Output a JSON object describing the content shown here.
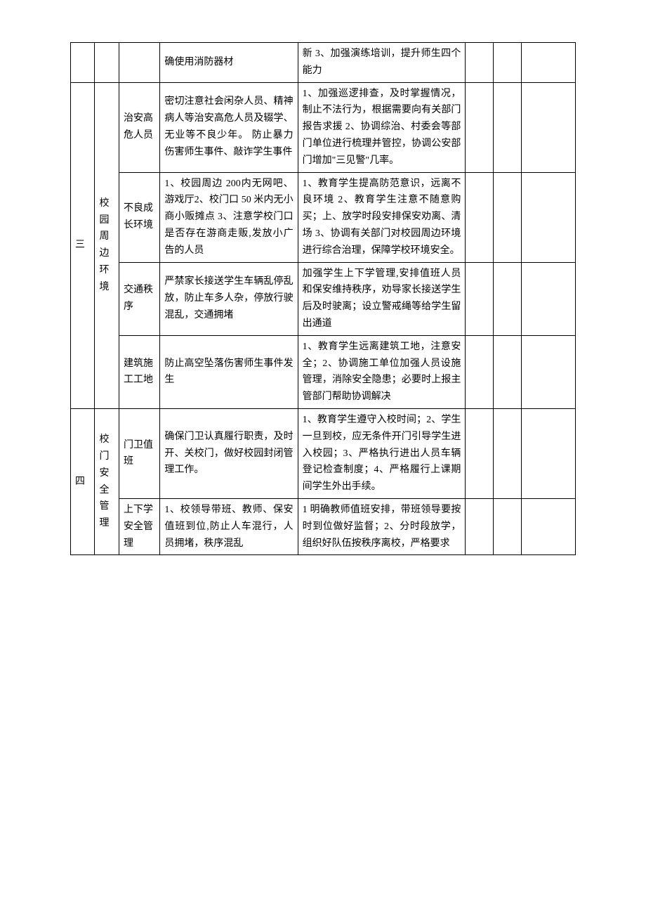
{
  "watermark": "",
  "rows": [
    {
      "idx": "",
      "cat": "",
      "sub": "",
      "desc_cont": "确使用消防器材",
      "measure_cont": "新\n3、加强演练培训，提升师生四个能力"
    }
  ],
  "section3": {
    "idx": "三",
    "cat": "校园周边环境",
    "subs": [
      {
        "sub": "治安高危人员",
        "desc": "密切注意社会闲杂人员、精神病人等治安高危人员及辍学、无业等不良少年。\n防止暴力伤害师生事件、敲诈学生事件",
        "measure": "1、加强巡逻排查，及时掌握情况，制止不法行为，根据需要向有关部门报告求援 2、协调综治、村委会等部门单位进行梳理并管控，协调公安部门增加\"三见警\"几率。"
      },
      {
        "sub": "不良成长环境",
        "desc": "1、校园周边 200内无网吧、游戏厅2、校门口 50 米内无小商小贩摊点 3、注意学校门口是否存在游商走贩,发放小广告的人员",
        "measure": "1、教育学生提高防范意识，远离不良环境 2、教育学生注意不随意购买；上、放学时段安排保安劝离、清场\n3、协调有关部门对校园周边环境进行综合治理，保障学校环境安全。"
      },
      {
        "sub": "交通秩序",
        "desc": "严禁家长接送学生车辆乱停乱放，防止车多人杂，停放行驶混乱，交通拥堵",
        "measure": "加强学生上下学管理,安排值班人员和保安维持秩序，劝导家长接送学生后及时驶离；设立警戒绳等给学生留出通道"
      },
      {
        "sub": "建筑施工工地",
        "desc": "防止高空坠落伤害师生事件发生",
        "measure": "1、教育学生远离建筑工地，注意安全；2、协调施工单位加强人员设施管理，消除安全隐患；必要时上报主管部门帮助协调解决"
      }
    ]
  },
  "section4": {
    "idx": "四",
    "cat": "校门安全管理",
    "subs": [
      {
        "sub": "门卫值班",
        "desc": "确保门卫认真履行职责，及时开、关校门，做好校园封闭管理工作。",
        "measure": "1、教育学生遵守入校时间；2、学生一旦到校，应无条件开门引导学生进入校园；3、严格执行进出人员车辆登记检查制度；4、严格履行上课期间学生外出手续。"
      },
      {
        "sub": "上下学安全管理",
        "desc": "1、校领导带班、教师、保安值班到位,防止人车混行，人员拥堵，秩序混乱",
        "measure": "1 明确教师值班安排，带班领导要按时到位做好监督；2、分时段放学，组织好队伍按秩序离校，严格要求"
      }
    ]
  }
}
